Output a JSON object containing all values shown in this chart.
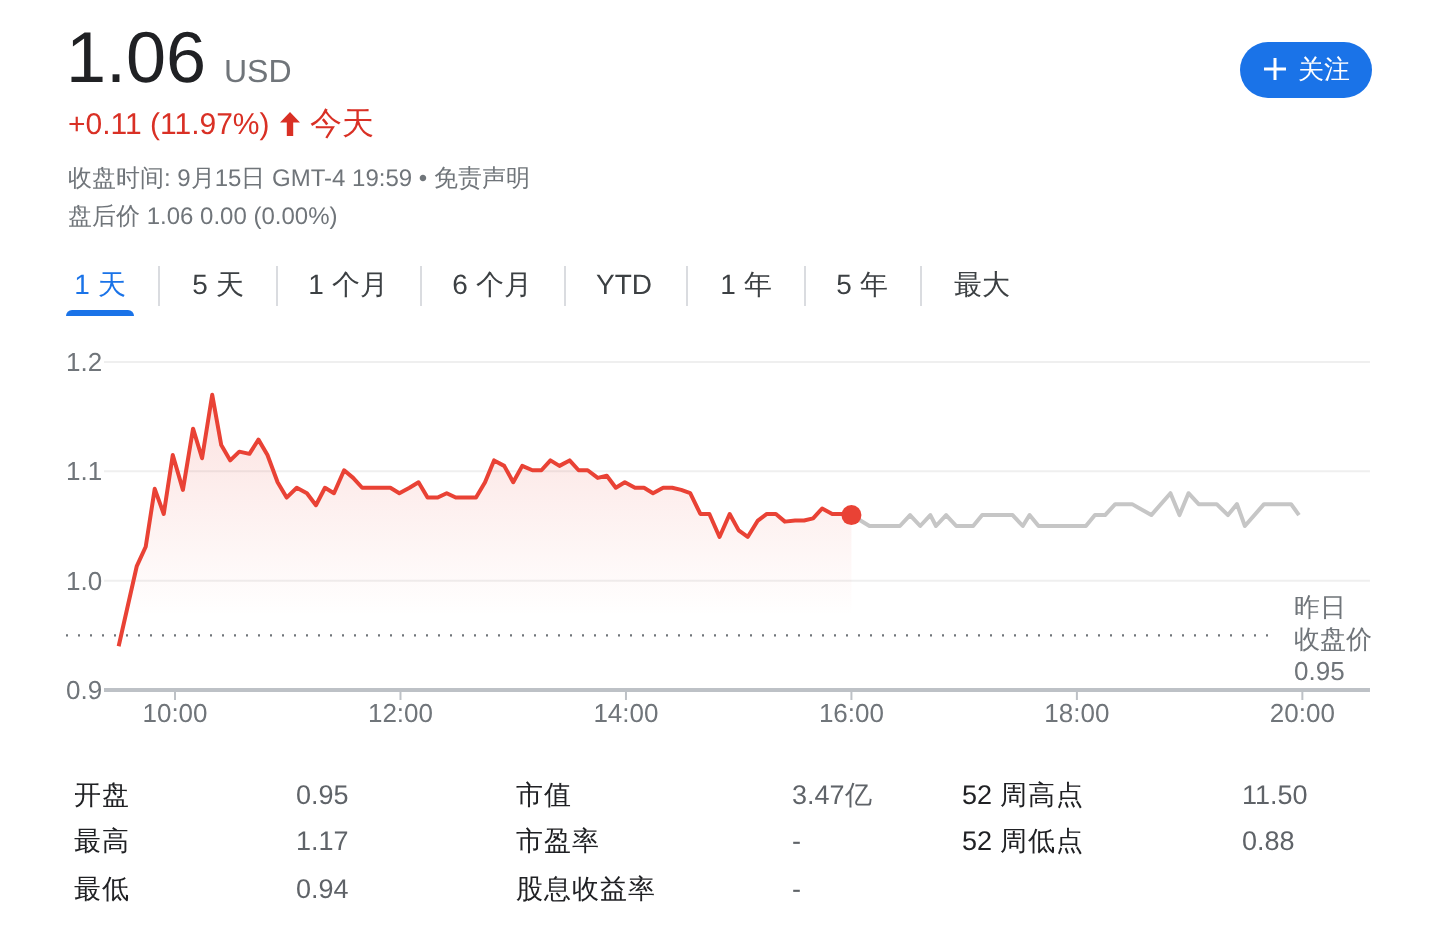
{
  "chart_data": {
    "type": "line",
    "title": "1.06",
    "subtitle": "USD",
    "annotations": [
      "+0.11 (11.97%)",
      "今天",
      "收盘时间: 9月15日 GMT-4 19:59 • 免责声明",
      "盘后价 1.06 0.00 (0.00%)",
      "关注",
      "1 天",
      "5 天",
      "1 个月",
      "6 个月",
      "YTD",
      "1 年",
      "5 年",
      "最大",
      "开盘",
      "0.95",
      "最高",
      "1.17",
      "最低",
      "0.94",
      "市值",
      "3.47亿",
      "市盈率",
      "-",
      "股息收益率",
      "-",
      "52 周高点",
      "11.50",
      "52 周低点",
      "0.88"
    ],
    "xlim": [
      9.37,
      20.6
    ],
    "xticks": [
      {
        "value": 10,
        "label": "10:00"
      },
      {
        "value": 12,
        "label": "12:00"
      },
      {
        "value": 14,
        "label": "14:00"
      },
      {
        "value": 16,
        "label": "16:00"
      },
      {
        "value": 18,
        "label": "18:00"
      },
      {
        "value": 20,
        "label": "20:00"
      }
    ],
    "ylim": [
      0.9,
      1.2
    ],
    "yticks": [
      0.9,
      {
        "value": 1,
        "label": "1.0"
      },
      1.1,
      1.2
    ],
    "grid": "y",
    "ref_lines": [
      {
        "axis": "y",
        "value": 0.95,
        "label": "昨日收盘价 0.95",
        "line_style": "dotted",
        "color": "#70757a"
      }
    ],
    "series": [
      {
        "type": "area",
        "color": "#e94235",
        "x": [
          9.5,
          9.66,
          9.74,
          9.82,
          9.9,
          9.98,
          10.07,
          10.16,
          10.24,
          10.33,
          10.41,
          10.49,
          10.57,
          10.66,
          10.74,
          10.82,
          10.91,
          10.99,
          11.08,
          11.17,
          11.25,
          11.33,
          11.41,
          11.5,
          11.58,
          11.66,
          11.75,
          11.83,
          11.91,
          11.99,
          12.08,
          12.16,
          12.24,
          12.33,
          12.41,
          12.49,
          12.59,
          12.67,
          12.75,
          12.83,
          12.92,
          13.0,
          13.08,
          13.17,
          13.25,
          13.33,
          13.41,
          13.5,
          13.58,
          13.66,
          13.75,
          13.83,
          13.91,
          13.99,
          14.08,
          14.16,
          14.24,
          14.33,
          14.41,
          14.49,
          14.57,
          14.66,
          14.74,
          14.83,
          14.92,
          15.0,
          15.08,
          15.17,
          15.25,
          15.33,
          15.41,
          15.5,
          15.58,
          15.66,
          15.74,
          15.83,
          15.91,
          16.0
        ],
        "values": [
          0.94,
          1.013,
          1.031,
          1.084,
          1.061,
          1.115,
          1.083,
          1.139,
          1.112,
          1.17,
          1.124,
          1.11,
          1.118,
          1.116,
          1.129,
          1.115,
          1.09,
          1.076,
          1.085,
          1.08,
          1.069,
          1.085,
          1.08,
          1.101,
          1.094,
          1.085,
          1.085,
          1.085,
          1.085,
          1.08,
          1.085,
          1.09,
          1.076,
          1.076,
          1.08,
          1.076,
          1.076,
          1.076,
          1.09,
          1.11,
          1.105,
          1.09,
          1.105,
          1.101,
          1.101,
          1.11,
          1.105,
          1.11,
          1.101,
          1.101,
          1.094,
          1.096,
          1.085,
          1.09,
          1.085,
          1.085,
          1.08,
          1.085,
          1.085,
          1.083,
          1.08,
          1.061,
          1.061,
          1.04,
          1.061,
          1.046,
          1.04,
          1.055,
          1.061,
          1.061,
          1.054,
          1.055,
          1.055,
          1.057,
          1.066,
          1.061,
          1.061,
          1.06
        ]
      },
      {
        "color": "#c6c6c6",
        "x": [
          16.0,
          16.16,
          16.43,
          16.52,
          16.61,
          16.7,
          16.75,
          16.84,
          16.93,
          17.08,
          17.16,
          17.43,
          17.52,
          17.58,
          17.66,
          18.08,
          18.16,
          18.25,
          18.34,
          18.49,
          18.66,
          18.83,
          18.91,
          18.99,
          19.08,
          19.24,
          19.34,
          19.42,
          19.49,
          19.66,
          19.9,
          19.97
        ],
        "values": [
          1.06,
          1.05,
          1.05,
          1.06,
          1.05,
          1.06,
          1.05,
          1.06,
          1.05,
          1.05,
          1.06,
          1.06,
          1.05,
          1.06,
          1.05,
          1.05,
          1.06,
          1.06,
          1.07,
          1.07,
          1.06,
          1.08,
          1.06,
          1.08,
          1.07,
          1.07,
          1.06,
          1.07,
          1.05,
          1.07,
          1.07,
          1.06
        ]
      },
      {
        "type": "scatter",
        "color": "#e94235",
        "x": [
          16.0
        ],
        "values": [
          1.06
        ]
      }
    ]
  }
}
